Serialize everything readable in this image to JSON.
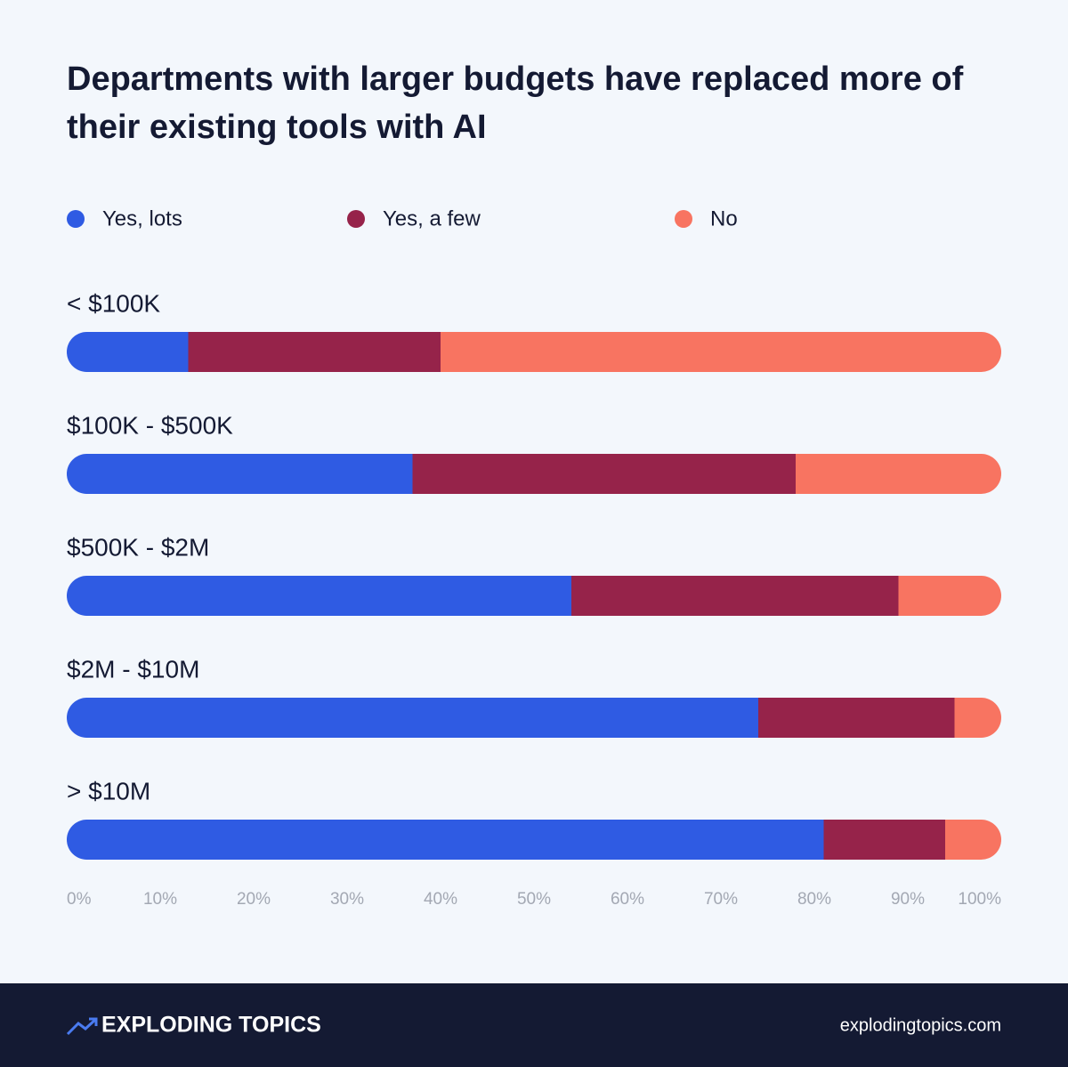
{
  "chart_data": {
    "type": "stacked-bar-horizontal",
    "title": "Departments with larger budgets have replaced more of their existing tools with AI",
    "categories": [
      "< $100K",
      "$100K - $500K",
      "$500K - $2M",
      "$2M - $10M",
      "> $10M"
    ],
    "series": [
      {
        "name": "Yes, lots",
        "color": "#2f5be3",
        "values": [
          13,
          37,
          54,
          74,
          81
        ]
      },
      {
        "name": "Yes, a few",
        "color": "#96234a",
        "values": [
          27,
          41,
          35,
          21,
          13
        ]
      },
      {
        "name": "No",
        "color": "#f87461",
        "values": [
          60,
          22,
          11,
          5,
          6
        ]
      }
    ],
    "xlim": [
      0,
      100
    ],
    "xticks": [
      {
        "value": 0,
        "label": "0%"
      },
      {
        "value": 10,
        "label": "10%"
      },
      {
        "value": 20,
        "label": "20%"
      },
      {
        "value": 30,
        "label": "30%"
      },
      {
        "value": 40,
        "label": "40%"
      },
      {
        "value": 50,
        "label": "50%"
      },
      {
        "value": 60,
        "label": "60%"
      },
      {
        "value": 70,
        "label": "70%"
      },
      {
        "value": 80,
        "label": "80%"
      },
      {
        "value": 90,
        "label": "90%"
      },
      {
        "value": 100,
        "label": "100%"
      }
    ],
    "grid": false
  },
  "footer": {
    "brand": "EXPLODING TOPICS",
    "url": "explodingtopics.com"
  }
}
